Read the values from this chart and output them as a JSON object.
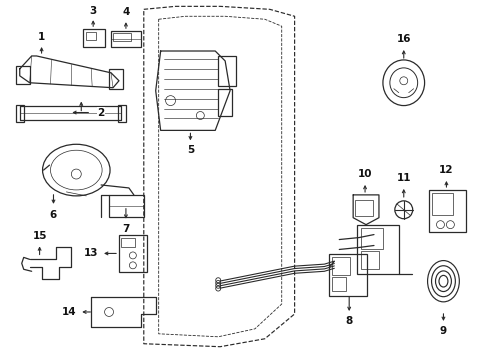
{
  "bg_color": "#ffffff",
  "line_color": "#2a2a2a",
  "text_color": "#111111",
  "fig_width": 4.89,
  "fig_height": 3.6,
  "dpi": 100
}
